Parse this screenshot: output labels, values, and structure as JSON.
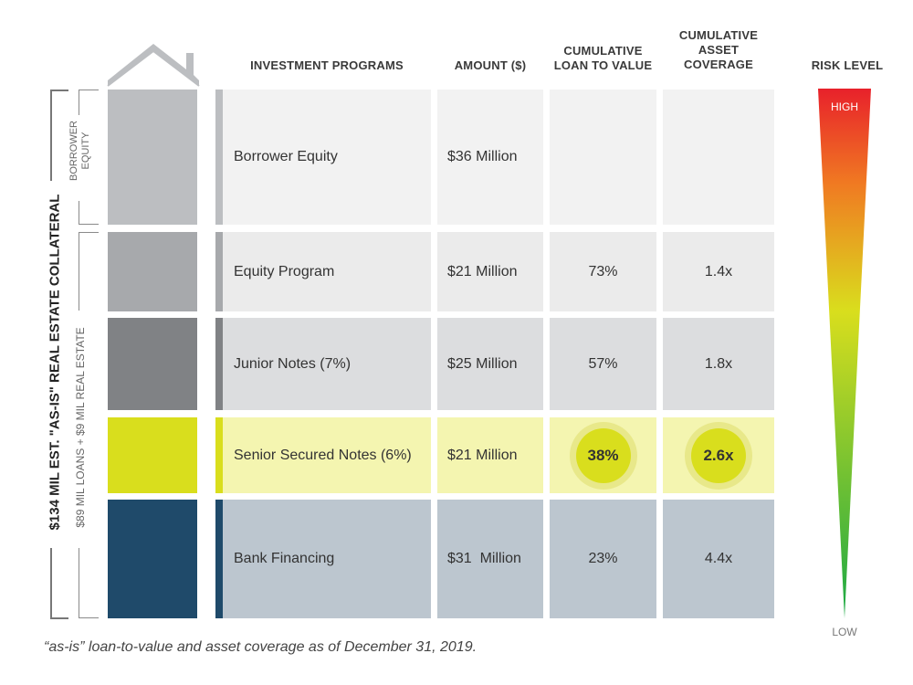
{
  "headers": {
    "programs": "INVESTMENT PROGRAMS",
    "amount": "AMOUNT ($)",
    "ltv_line1": "CUMULATIVE",
    "ltv_line2": "LOAN TO VALUE",
    "cov_line1": "CUMULATIVE",
    "cov_line2": "ASSET",
    "cov_line3": "COVERAGE",
    "risk": "RISK LEVEL"
  },
  "rows": [
    {
      "program": "Borrower Equity",
      "amount": "$36 Million",
      "ltv": "",
      "coverage": ""
    },
    {
      "program": "Equity Program",
      "amount": "$21 Million",
      "ltv": "73%",
      "coverage": "1.4x"
    },
    {
      "program": "Junior Notes (7%)",
      "amount": "$25 Million",
      "ltv": "57%",
      "coverage": "1.8x"
    },
    {
      "program": "Senior Secured Notes (6%)",
      "amount": "$21 Million",
      "ltv": "38%",
      "coverage": "2.6x"
    },
    {
      "program": "Bank Financing",
      "amount": "$31  Million",
      "ltv": "23%",
      "coverage": "4.4x"
    }
  ],
  "side_labels": {
    "collateral": "$134 MIL EST. \"AS-IS\" REAL ESTATE COLLATERAL",
    "borrower_equity_line1": "BORROWER",
    "borrower_equity_line2": "EQUITY",
    "loans": "$89 MIL LOANS + $9 MIL REAL ESTATE"
  },
  "risk": {
    "high": "HIGH",
    "low": "LOW"
  },
  "footnote": "“as-is” loan-to-value and asset coverage as of December 31, 2019.",
  "colors": {
    "borrower_equity": "#bcbec1",
    "equity_program": "#a7a9ac",
    "junior_notes": "#808285",
    "senior_notes": "#d9de1d",
    "bank_financing": "#1f4a6a"
  }
}
